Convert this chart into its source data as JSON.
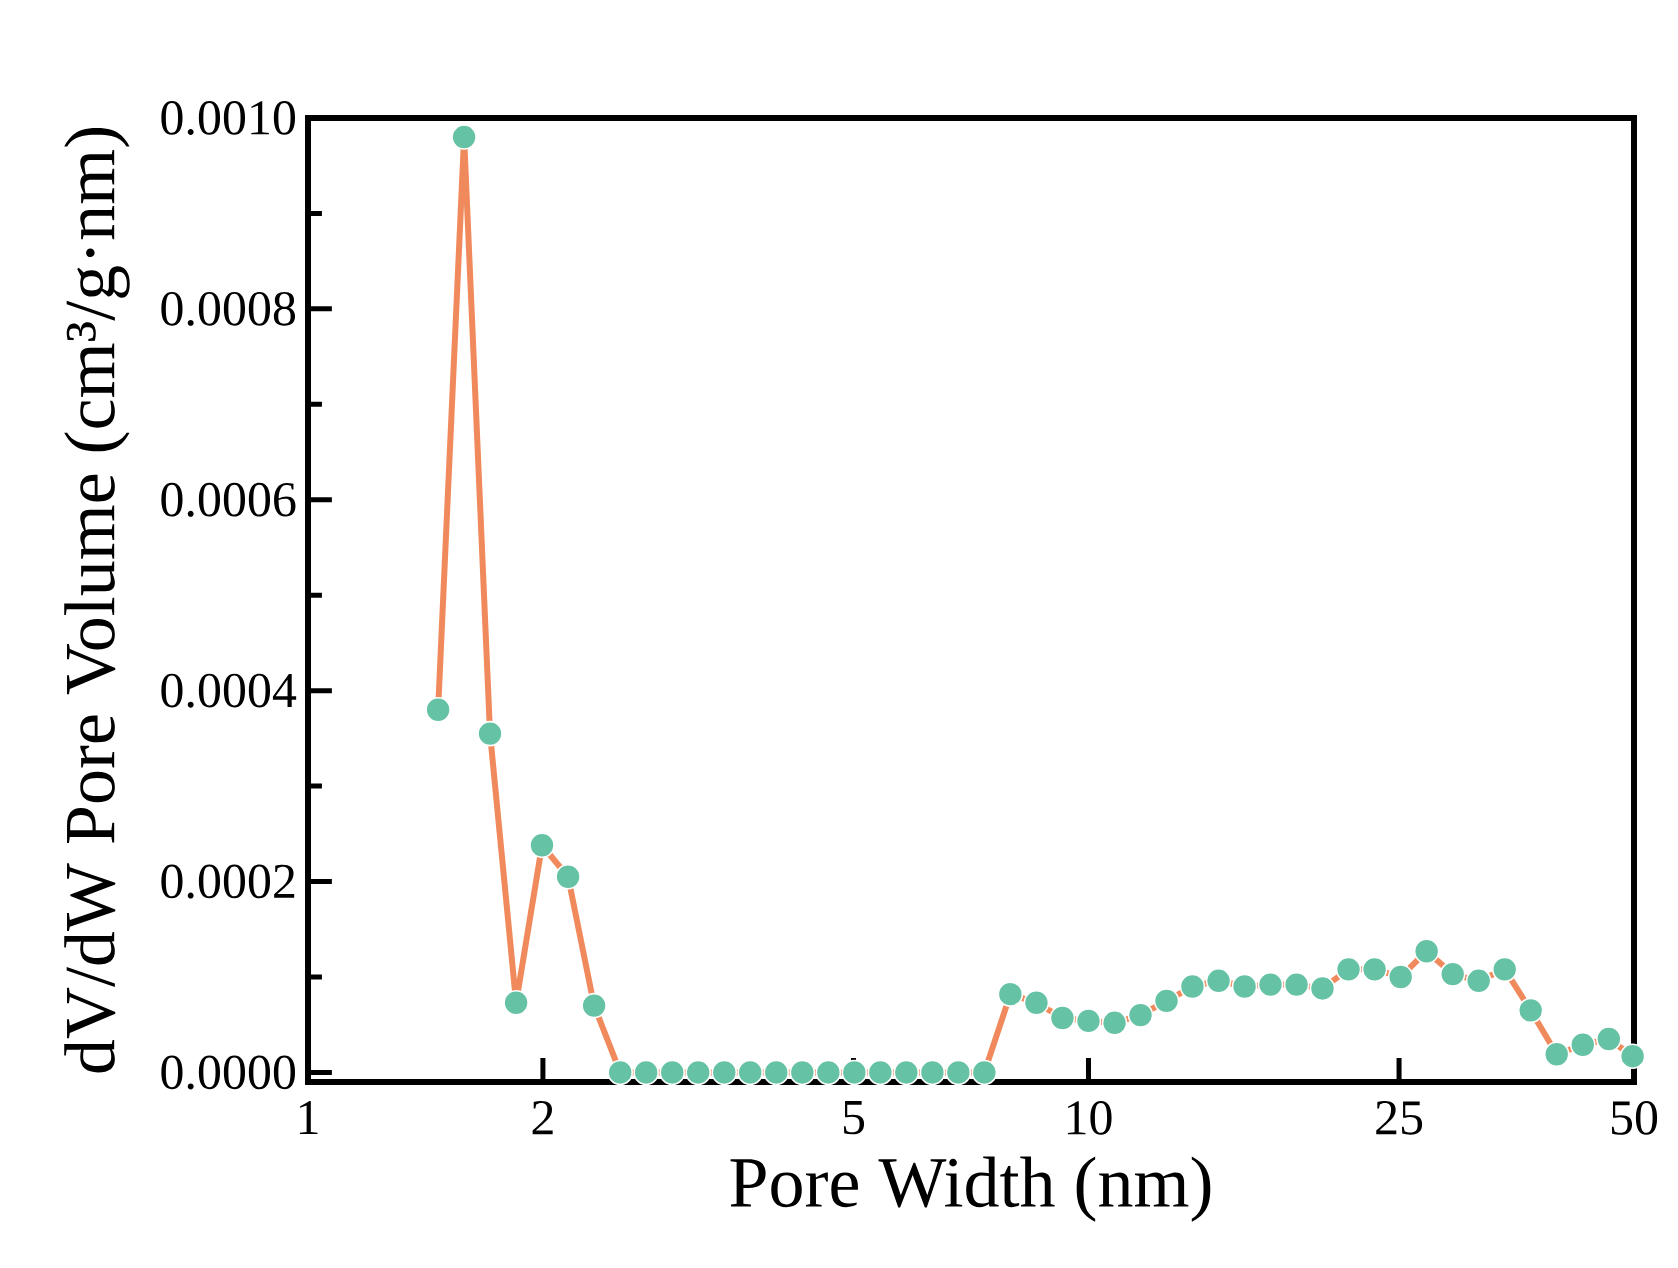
{
  "chart_data": {
    "type": "line",
    "xlabel": "Pore Width (nm)",
    "ylabel": "dV/dW Pore Volume (cm³/g·nm)",
    "log": "x",
    "xlim": [
      1,
      50
    ],
    "xticks": [
      1,
      2,
      5,
      10,
      25,
      50
    ],
    "ylim": [
      -1e-05,
      0.001
    ],
    "yticks": [
      {
        "value": 0,
        "label": "0.0000"
      },
      {
        "value": 0.0002,
        "label": "0.0002"
      },
      {
        "value": 0.0004,
        "label": "0.0004"
      },
      {
        "value": 0.0006,
        "label": "0.0006"
      },
      {
        "value": 0.0008,
        "label": "0.0008"
      },
      {
        "value": 0.001,
        "label": "0.0010"
      }
    ],
    "marker": "circle",
    "line_style": "solid",
    "series": [
      {
        "color": "#f08a5d",
        "colors": [
          "#66c2a5",
          "#66c2a5",
          "#66c2a5",
          "#66c2a5",
          "#66c2a5",
          "#66c2a5",
          "#66c2a5",
          "#66c2a5",
          "#66c2a5",
          "#66c2a5",
          "#66c2a5",
          "#66c2a5",
          "#66c2a5",
          "#66c2a5",
          "#66c2a5",
          "#66c2a5",
          "#66c2a5",
          "#66c2a5",
          "#66c2a5",
          "#66c2a5",
          "#66c2a5",
          "#66c2a5",
          "#66c2a5",
          "#66c2a5",
          "#66c2a5",
          "#66c2a5",
          "#66c2a5",
          "#66c2a5",
          "#66c2a5",
          "#66c2a5",
          "#66c2a5",
          "#66c2a5",
          "#66c2a5",
          "#66c2a5",
          "#66c2a5",
          "#66c2a5",
          "#66c2a5",
          "#66c2a5",
          "#66c2a5",
          "#66c2a5",
          "#66c2a5",
          "#66c2a5",
          "#66c2a5",
          "#66c2a5",
          "#66c2a5",
          "#66c2a5",
          "#66c2a5"
        ],
        "x": [
          1.468,
          1.585,
          1.711,
          1.848,
          1.995,
          2.154,
          2.326,
          2.512,
          2.712,
          2.929,
          3.162,
          3.415,
          3.687,
          3.981,
          4.299,
          4.642,
          5.012,
          5.412,
          5.843,
          6.31,
          6.813,
          7.356,
          7.943,
          8.577,
          9.261,
          10.0,
          10.8,
          11.66,
          12.59,
          13.59,
          14.68,
          15.85,
          17.11,
          18.48,
          19.95,
          21.54,
          23.26,
          25.12,
          27.12,
          29.29,
          31.62,
          34.15,
          36.87,
          39.81,
          42.99,
          46.42,
          49.8
        ],
        "values": [
          0.00038,
          0.00098,
          0.000355,
          7.3e-05,
          0.000238,
          0.000205,
          7e-05,
          0,
          0,
          0,
          0,
          0,
          0,
          0,
          0,
          0,
          0,
          0,
          0,
          0,
          0,
          0,
          8.2e-05,
          7.3e-05,
          5.7e-05,
          5.4e-05,
          5.2e-05,
          6e-05,
          7.5e-05,
          9e-05,
          9.6e-05,
          9e-05,
          9.2e-05,
          9.2e-05,
          8.8e-05,
          0.000108,
          0.000108,
          0.0001,
          0.000127,
          0.000103,
          9.6e-05,
          0.000108,
          6.5e-05,
          1.9e-05,
          2.9e-05,
          3.5e-05,
          1.7e-05
        ]
      }
    ]
  }
}
